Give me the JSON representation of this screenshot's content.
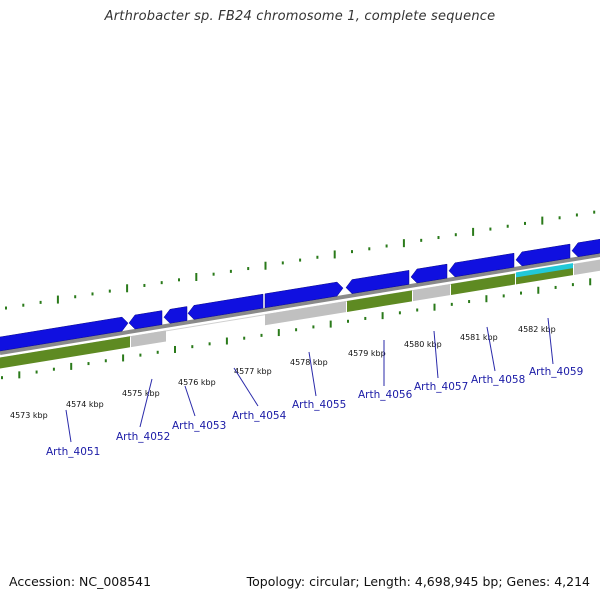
{
  "title": "Arthrobacter sp. FB24 chromosome 1, complete sequence",
  "footer": {
    "accession": "Accession: NC_008541",
    "summary": "Topology: circular; Length: 4,698,945 bp; Genes: 4,214"
  },
  "colors": {
    "forward_gene": "#1010e0",
    "reverse_gene_olive": "#5e8a22",
    "gray_feature": "#c0c0c0",
    "cyan_feature": "#22c8d8",
    "backbone": "#8a8a8a",
    "tick_green": "#2a7a1a",
    "gene_label": "#1a1aa6",
    "leader_line": "#2a2aaa"
  },
  "kbp_ticks": [
    "4573 kbp",
    "4574 kbp",
    "4575 kbp",
    "4576 kbp",
    "4577 kbp",
    "4578 kbp",
    "4579 kbp",
    "4580 kbp",
    "4581 kbp",
    "4582 kbp"
  ],
  "genes": [
    {
      "locus": "Arth_4051"
    },
    {
      "locus": "Arth_4052"
    },
    {
      "locus": "Arth_4053"
    },
    {
      "locus": "Arth_4054"
    },
    {
      "locus": "Arth_4055"
    },
    {
      "locus": "Arth_4056"
    },
    {
      "locus": "Arth_4057"
    },
    {
      "locus": "Arth_4058"
    },
    {
      "locus": "Arth_4059"
    }
  ]
}
